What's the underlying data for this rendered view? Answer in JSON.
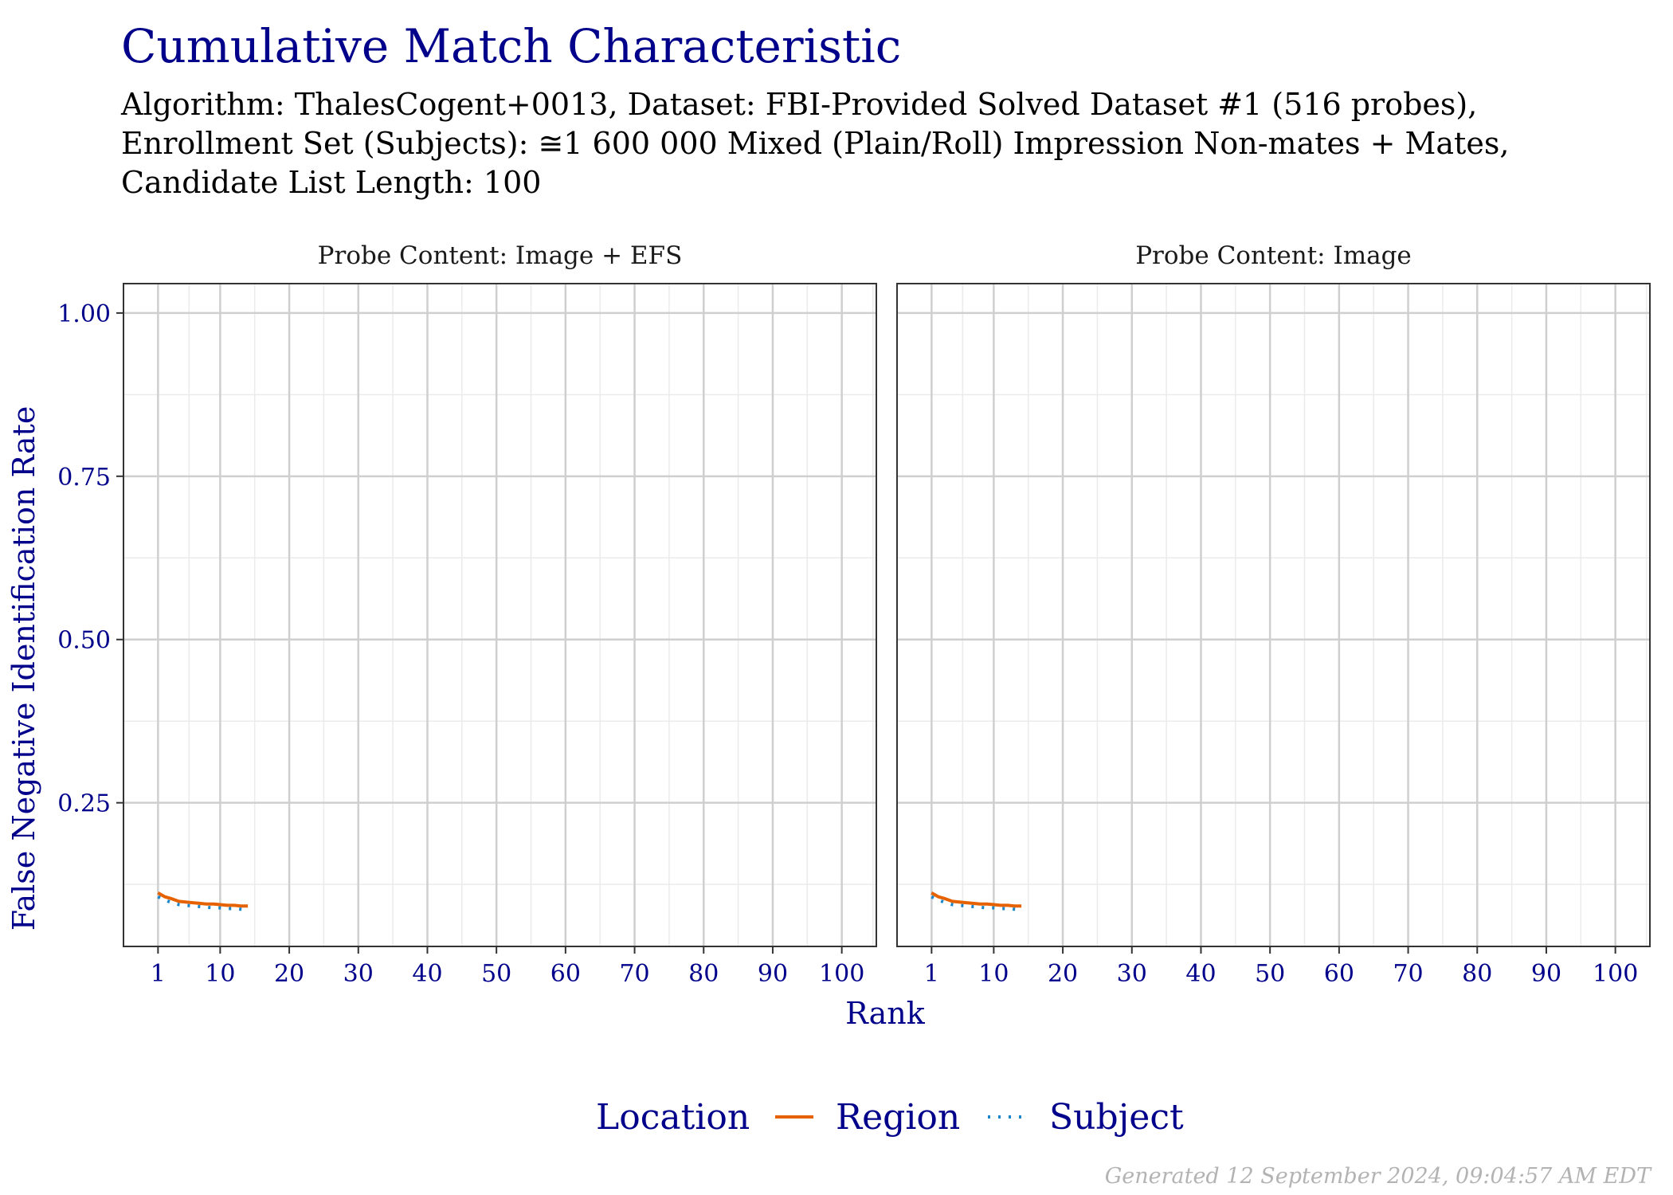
{
  "title": "Cumulative Match Characteristic",
  "subtitle": [
    "Algorithm: ThalesCogent+0013, Dataset: FBI-Provided Solved Dataset #1 (516 probes),",
    "Enrollment Set (Subjects): ≅1 600 000 Mixed (Plain/Roll) Impression Non-mates + Mates,",
    "Candidate List Length: 100"
  ],
  "caption": "Generated 12 September 2024, 09:04:57 AM EDT",
  "chart_data": {
    "type": "line",
    "xlabel": "Rank",
    "ylabel": "False Negative Identification Rate",
    "xlim": [
      -4,
      105
    ],
    "ylim": [
      0.03,
      1.045
    ],
    "x_ticks": [
      1,
      10,
      20,
      30,
      40,
      50,
      60,
      70,
      80,
      90,
      100
    ],
    "y_ticks": [
      0.25,
      0.5,
      0.75,
      1.0
    ],
    "y_tick_labels": [
      "0.25",
      "0.50",
      "0.75",
      "1.00"
    ],
    "grid": true,
    "legend": {
      "title": "Location",
      "position": "bottom",
      "entries": [
        {
          "label": "Region",
          "color": "#e66100",
          "dash": "solid"
        },
        {
          "label": "Subject",
          "color": "#1a85c8",
          "dash": "dotted"
        }
      ]
    },
    "panels": [
      {
        "strip": "Probe Content: Image + EFS",
        "series": [
          {
            "name": "Region",
            "color": "#e66100",
            "dash": "solid",
            "x": [
              1,
              2,
              3,
              4,
              5,
              6,
              7,
              8,
              9,
              10,
              11,
              12,
              13,
              14
            ],
            "y": [
              0.112,
              0.106,
              0.103,
              0.099,
              0.098,
              0.097,
              0.096,
              0.095,
              0.095,
              0.094,
              0.093,
              0.093,
              0.092,
              0.092
            ]
          },
          {
            "name": "Subject",
            "color": "#1a85c8",
            "dash": "dotted",
            "x": [
              1,
              2,
              3,
              4,
              5,
              6,
              7,
              8,
              9,
              10,
              11,
              12,
              13,
              14
            ],
            "y": [
              0.106,
              0.101,
              0.097,
              0.094,
              0.093,
              0.092,
              0.091,
              0.09,
              0.089,
              0.089,
              0.088,
              0.088,
              0.087,
              0.086
            ]
          }
        ]
      },
      {
        "strip": "Probe Content: Image",
        "series": [
          {
            "name": "Region",
            "color": "#e66100",
            "dash": "solid",
            "x": [
              1,
              2,
              3,
              4,
              5,
              6,
              7,
              8,
              9,
              10,
              11,
              12,
              13,
              14
            ],
            "y": [
              0.112,
              0.106,
              0.103,
              0.099,
              0.098,
              0.097,
              0.096,
              0.095,
              0.095,
              0.094,
              0.093,
              0.093,
              0.092,
              0.092
            ]
          },
          {
            "name": "Subject",
            "color": "#1a85c8",
            "dash": "dotted",
            "x": [
              1,
              2,
              3,
              4,
              5,
              6,
              7,
              8,
              9,
              10,
              11,
              12,
              13,
              14
            ],
            "y": [
              0.106,
              0.101,
              0.097,
              0.094,
              0.093,
              0.092,
              0.091,
              0.09,
              0.089,
              0.089,
              0.088,
              0.088,
              0.087,
              0.086
            ]
          }
        ]
      }
    ]
  }
}
